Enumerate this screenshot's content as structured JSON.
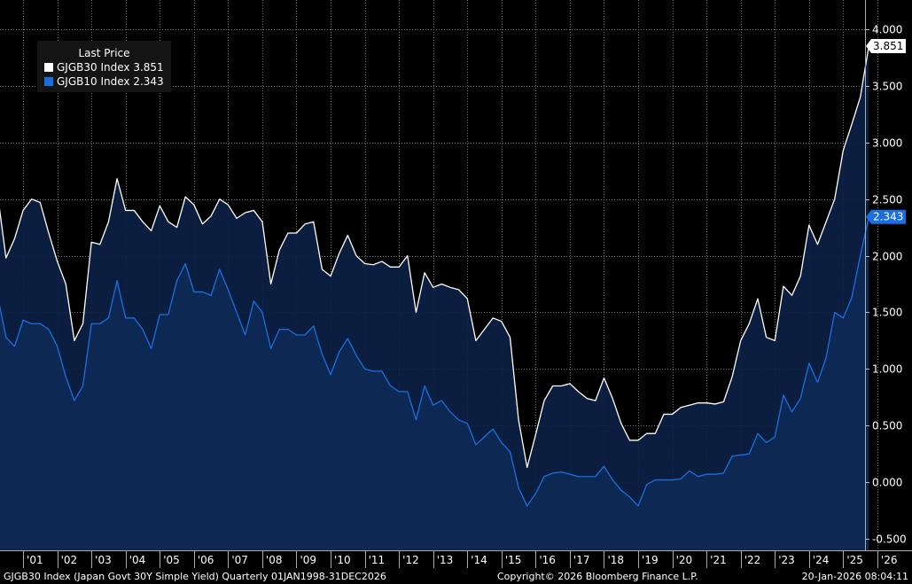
{
  "chart_data": {
    "type": "area",
    "legend_title": "Last Price",
    "legend_placement": "top-left",
    "grid": true,
    "ylim": [
      -0.65,
      4.1
    ],
    "yticks": [
      -0.5,
      0.0,
      0.5,
      1.0,
      1.5,
      2.0,
      2.5,
      3.0,
      3.5,
      4.0
    ],
    "ytick_labels": [
      "-0.500",
      "0.000",
      "0.500",
      "1.000",
      "1.500",
      "2.000",
      "2.500",
      "3.000",
      "3.500",
      "4.000"
    ],
    "xlim": [
      2000.0,
      2026.3
    ],
    "xticks": [
      2001,
      2002,
      2003,
      2004,
      2005,
      2006,
      2007,
      2008,
      2009,
      2010,
      2011,
      2012,
      2013,
      2014,
      2015,
      2016,
      2017,
      2018,
      2019,
      2020,
      2021,
      2022,
      2023,
      2024,
      2025,
      2026
    ],
    "xtick_labels": [
      "'01",
      "'02",
      "'03",
      "'04",
      "'05",
      "'06",
      "'07",
      "'08",
      "'09",
      "'10",
      "'11",
      "'12",
      "'13",
      "'14",
      "'15",
      "'16",
      "'17",
      "'18",
      "'19",
      "'20",
      "'21",
      "'22",
      "'23",
      "'24",
      "'25",
      "'26"
    ],
    "x_start": 2000.0,
    "x_step": 0.25,
    "series": [
      {
        "name": "GJGB30 Index",
        "last_value": "3.851",
        "color": "#ffffff",
        "fill": "#0c2144",
        "values": [
          2.72,
          2.55,
          1.98,
          2.15,
          2.4,
          2.5,
          2.47,
          2.2,
          1.95,
          1.75,
          1.25,
          1.4,
          2.12,
          2.1,
          2.3,
          2.68,
          2.4,
          2.4,
          2.3,
          2.22,
          2.44,
          2.3,
          2.25,
          2.52,
          2.45,
          2.28,
          2.35,
          2.5,
          2.45,
          2.33,
          2.38,
          2.4,
          2.3,
          1.75,
          2.05,
          2.2,
          2.2,
          2.28,
          2.3,
          1.88,
          1.82,
          2.02,
          2.18,
          2.0,
          1.93,
          1.92,
          1.95,
          1.9,
          1.9,
          2.0,
          1.5,
          1.85,
          1.72,
          1.75,
          1.72,
          1.7,
          1.62,
          1.25,
          1.35,
          1.45,
          1.42,
          1.28,
          0.55,
          0.13,
          0.42,
          0.72,
          0.85,
          0.85,
          0.87,
          0.8,
          0.74,
          0.72,
          0.92,
          0.74,
          0.52,
          0.37,
          0.37,
          0.43,
          0.43,
          0.6,
          0.6,
          0.66,
          0.68,
          0.7,
          0.7,
          0.69,
          0.71,
          0.93,
          1.25,
          1.4,
          1.62,
          1.28,
          1.25,
          1.73,
          1.65,
          1.82,
          2.27,
          2.1,
          2.3,
          2.5,
          2.93,
          3.16,
          3.4,
          3.851
        ]
      },
      {
        "name": "GJGB10 Index",
        "last_value": "2.343",
        "color": "#1a6fe0",
        "fill": "#0e2a55",
        "values": [
          1.85,
          1.65,
          1.28,
          1.2,
          1.43,
          1.4,
          1.4,
          1.35,
          1.2,
          0.93,
          0.72,
          0.85,
          1.4,
          1.4,
          1.45,
          1.78,
          1.45,
          1.45,
          1.35,
          1.18,
          1.48,
          1.48,
          1.78,
          1.93,
          1.68,
          1.68,
          1.65,
          1.88,
          1.7,
          1.5,
          1.3,
          1.6,
          1.5,
          1.18,
          1.35,
          1.35,
          1.3,
          1.3,
          1.38,
          1.13,
          0.95,
          1.15,
          1.27,
          1.12,
          1.0,
          0.98,
          0.98,
          0.85,
          0.8,
          0.8,
          0.55,
          0.85,
          0.68,
          0.72,
          0.62,
          0.55,
          0.52,
          0.33,
          0.4,
          0.47,
          0.35,
          0.27,
          -0.05,
          -0.21,
          -0.1,
          0.05,
          0.08,
          0.09,
          0.07,
          0.05,
          0.05,
          0.05,
          0.14,
          0.02,
          -0.07,
          -0.13,
          -0.21,
          -0.02,
          0.02,
          0.02,
          0.02,
          0.03,
          0.1,
          0.05,
          0.07,
          0.07,
          0.08,
          0.23,
          0.24,
          0.25,
          0.43,
          0.35,
          0.4,
          0.77,
          0.62,
          0.74,
          1.05,
          0.88,
          1.1,
          1.5,
          1.45,
          1.63,
          2.0,
          2.343
        ]
      }
    ]
  },
  "footer": {
    "left": "GJGB30 Index (Japan Govt 30Y Simple Yield) Quarterly 01JAN1998-31DEC2026",
    "center": "Copyright© 2026 Bloomberg Finance L.P.",
    "right": "20-Jan-2026 08:04:11"
  }
}
